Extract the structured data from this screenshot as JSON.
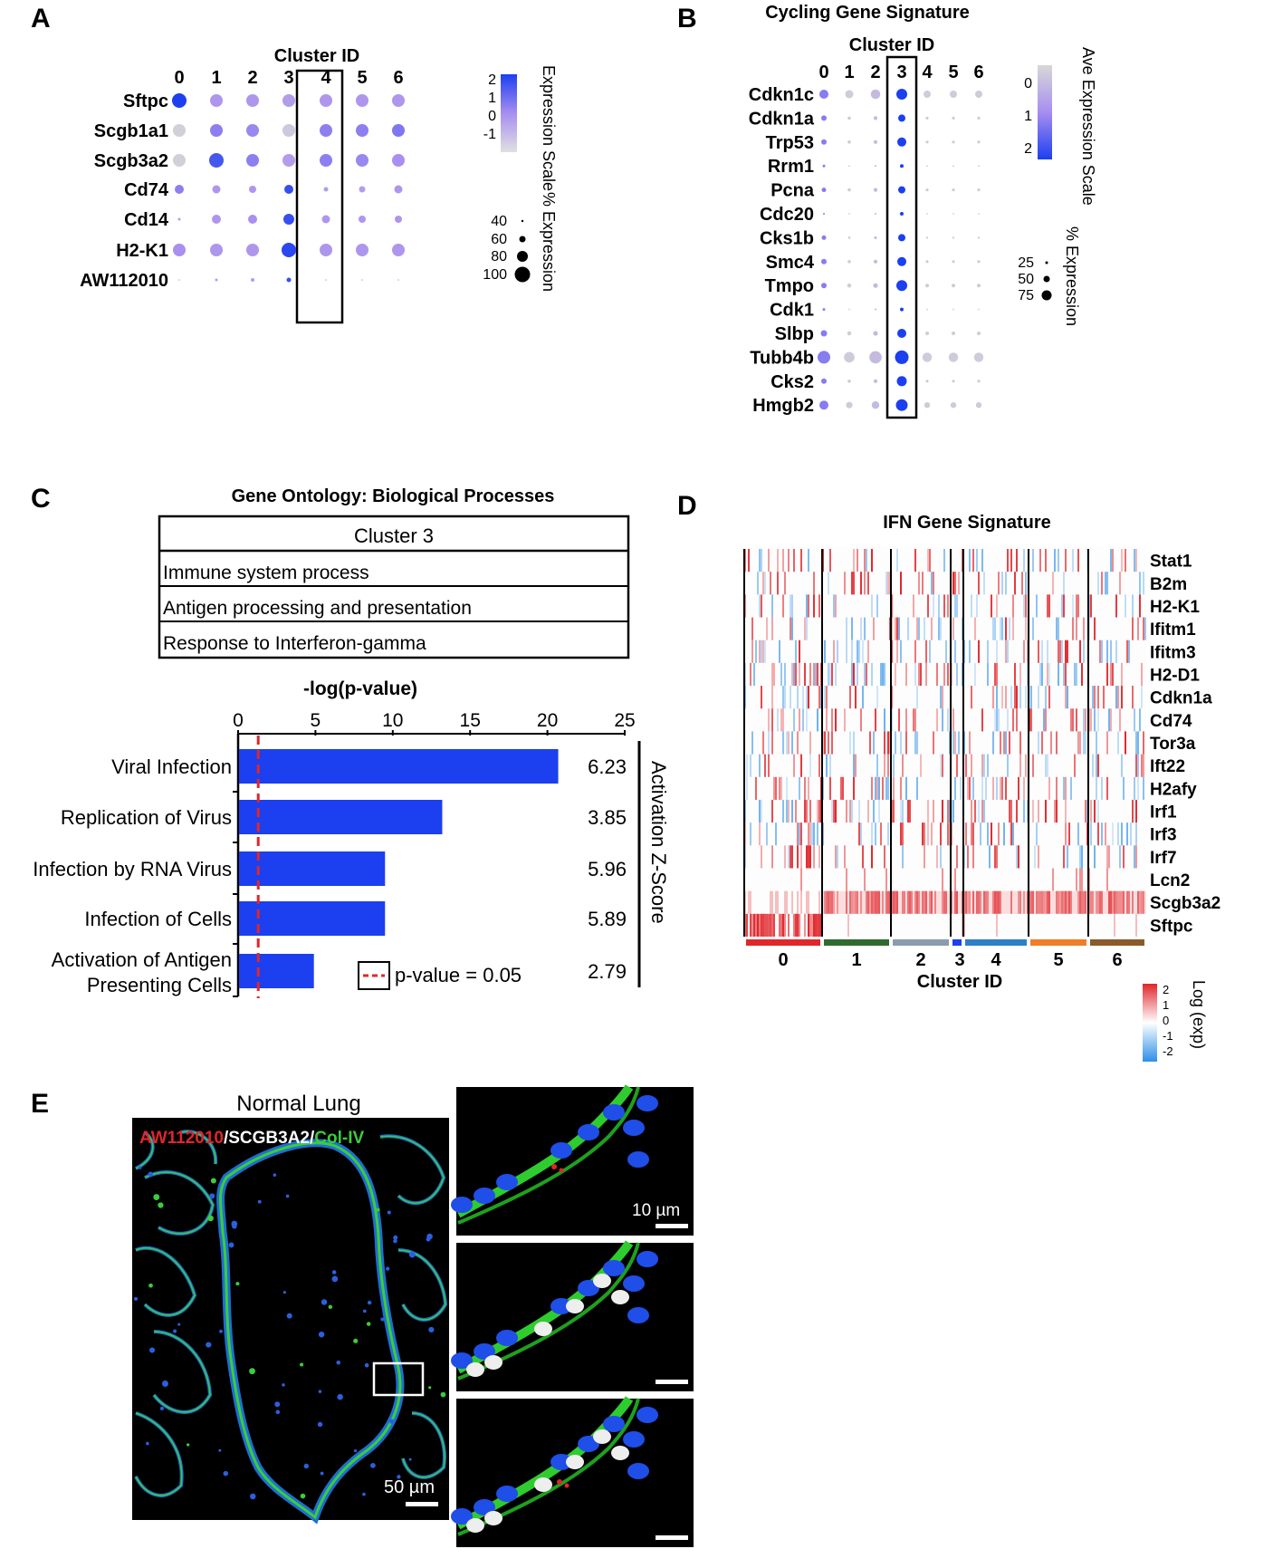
{
  "panels": {
    "A": "A",
    "B": "B",
    "C": "C",
    "D": "D",
    "E": "E"
  },
  "panel_a": {
    "xlabel": "Cluster ID",
    "clusters": [
      "0",
      "1",
      "2",
      "3",
      "4",
      "5",
      "6"
    ],
    "genes": [
      "Sftpc",
      "Scgb1a1",
      "Scgb3a2",
      "Cd74",
      "Cd14",
      "H2-K1",
      "AW112010"
    ],
    "highlight_cluster": "3",
    "legend_color_title": "Expression Scale",
    "legend_color_ticks": [
      "2",
      "1",
      "0",
      "-1"
    ],
    "legend_size_title": "% Expression",
    "legend_size_ticks": [
      "40",
      "60",
      "80",
      "100"
    ],
    "colors": {
      "low": "#d4d4d4",
      "high": "#1c3ff0"
    }
  },
  "panel_b": {
    "title": "Cycling Gene Signature",
    "xlabel": "Cluster ID",
    "clusters": [
      "0",
      "1",
      "2",
      "3",
      "4",
      "5",
      "6"
    ],
    "genes": [
      "Cdkn1c",
      "Cdkn1a",
      "Trp53",
      "Rrm1",
      "Pcna",
      "Cdc20",
      "Cks1b",
      "Smc4",
      "Tmpo",
      "Cdk1",
      "Slbp",
      "Tubb4b",
      "Cks2",
      "Hmgb2"
    ],
    "highlight_cluster": "3",
    "legend_color_title": "Ave Expression Scale",
    "legend_color_ticks": [
      "0",
      "1",
      "2"
    ],
    "legend_size_title": "% Expression",
    "legend_size_ticks": [
      "25",
      "50",
      "75"
    ]
  },
  "panel_c": {
    "go_title": "Gene Ontology: Biological Processes",
    "go_header": "Cluster 3",
    "go_rows": [
      "Immune system process",
      "Antigen processing and presentation",
      "Response to Interferon-gamma"
    ],
    "axis_title": "-log(p-value)",
    "right_label": "Activation Z-Score",
    "legend_label": "p-value = 0.05",
    "threshold": 1.3,
    "ticks": [
      "0",
      "5",
      "10",
      "15",
      "20",
      "25"
    ],
    "bar_color": "#1c3ff0",
    "line_color": "#e0262b"
  },
  "chart_data": {
    "type": "bar",
    "orientation": "horizontal",
    "categories": [
      "Viral Infection",
      "Replication of Virus",
      "Infection by RNA Virus",
      "Infection of Cells",
      "Activation of Antigen Presenting Cells"
    ],
    "category_lines": [
      [
        "Viral Infection"
      ],
      [
        "Replication of Virus"
      ],
      [
        "Infection by RNA Virus"
      ],
      [
        "Infection of Cells"
      ],
      [
        "Activation of Antigen",
        "Presenting Cells"
      ]
    ],
    "values": [
      20.7,
      13.2,
      9.5,
      9.5,
      4.9
    ],
    "zscores": [
      "6.23",
      "3.85",
      "5.96",
      "5.89",
      "2.79"
    ],
    "xlabel": "-log(p-value)",
    "xlim": [
      0,
      25
    ],
    "grid": false
  },
  "panel_d": {
    "title": "IFN Gene Signature",
    "genes": [
      "Stat1",
      "B2m",
      "H2-K1",
      "Ifitm1",
      "Ifitm3",
      "H2-D1",
      "Cdkn1a",
      "Cd74",
      "Tor3a",
      "Ift22",
      "H2afy",
      "Irf1",
      "Irf3",
      "Irf7",
      "Lcn2",
      "Scgb3a2",
      "Sftpc"
    ],
    "clusters": [
      "0",
      "1",
      "2",
      "3",
      "4",
      "5",
      "6"
    ],
    "cluster_colors": [
      "#e0262b",
      "#2f6b2f",
      "#8a9cb0",
      "#1c3ff0",
      "#2f7fc8",
      "#f07d2a",
      "#8a5a2b"
    ],
    "xlabel": "Cluster ID",
    "legend_title": "Log (exp)",
    "legend_ticks": [
      "2",
      "1",
      "0",
      "-1",
      "-2"
    ]
  },
  "panel_e": {
    "title": "Normal Lung",
    "stain_red": "AW112010",
    "stain_white": "SCGB3A2",
    "stain_green": "Col-IV",
    "sep": "/",
    "scale_main": "50 µm",
    "scale_inset": "10 µm"
  }
}
